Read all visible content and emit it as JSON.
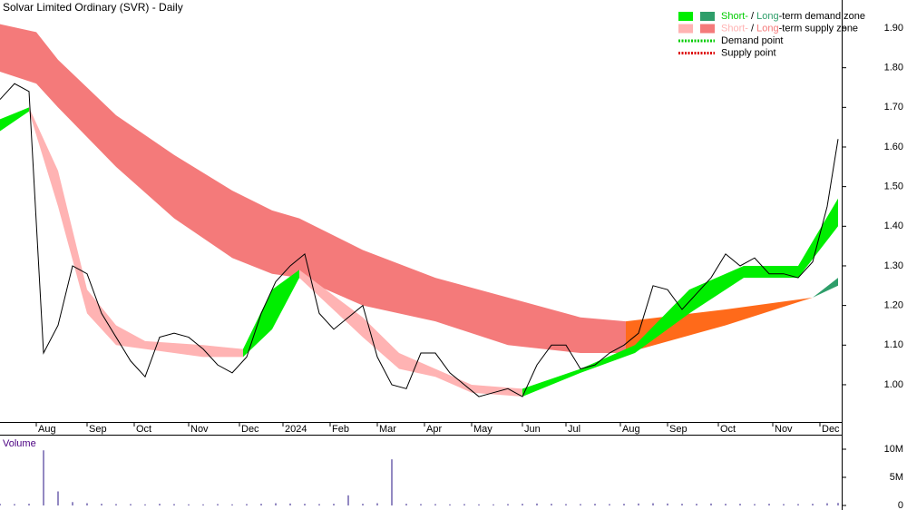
{
  "chart_data": [
    {
      "type": "line",
      "title": "Solvar Limited Ordinary (SVR) - Daily",
      "color": "#000000",
      "x": [
        0,
        4,
        8,
        12,
        16,
        20,
        24,
        28,
        32,
        36,
        40,
        44,
        48,
        52,
        56,
        60,
        64,
        68,
        72,
        76,
        80,
        84,
        88,
        92,
        96,
        100,
        104,
        108,
        112,
        116,
        120,
        124,
        128,
        132,
        136,
        140,
        144,
        148,
        152,
        156,
        160,
        164,
        168,
        172,
        176,
        180,
        184,
        188,
        192,
        196,
        200,
        204,
        208,
        212,
        216,
        220,
        224,
        228,
        231
      ],
      "values": [
        1.72,
        1.76,
        1.74,
        1.08,
        1.15,
        1.3,
        1.28,
        1.18,
        1.12,
        1.06,
        1.02,
        1.12,
        1.13,
        1.12,
        1.09,
        1.05,
        1.03,
        1.07,
        1.18,
        1.26,
        1.3,
        1.33,
        1.18,
        1.14,
        1.17,
        1.2,
        1.07,
        1.0,
        0.99,
        1.08,
        1.08,
        1.03,
        1.0,
        0.97,
        0.98,
        0.99,
        0.97,
        1.05,
        1.1,
        1.1,
        1.04,
        1.05,
        1.08,
        1.1,
        1.13,
        1.25,
        1.24,
        1.19,
        1.23,
        1.27,
        1.33,
        1.3,
        1.32,
        1.28,
        1.28,
        1.27,
        1.31,
        1.45,
        1.62
      ],
      "xlim": [
        0,
        232
      ],
      "xticks": [
        {
          "value": 10,
          "label": "Aug"
        },
        {
          "value": 24,
          "label": "Sep"
        },
        {
          "value": 37,
          "label": "Oct"
        },
        {
          "value": 52,
          "label": "Nov"
        },
        {
          "value": 66,
          "label": "Dec"
        },
        {
          "value": 78,
          "label": "2024"
        },
        {
          "value": 91,
          "label": "Feb"
        },
        {
          "value": 104,
          "label": "Mar"
        },
        {
          "value": 117,
          "label": "Apr"
        },
        {
          "value": 130,
          "label": "May"
        },
        {
          "value": 144,
          "label": "Jun"
        },
        {
          "value": 156,
          "label": "Jul"
        },
        {
          "value": 171,
          "label": "Aug"
        },
        {
          "value": 184,
          "label": "Sep"
        },
        {
          "value": 198,
          "label": "Oct"
        },
        {
          "value": 213,
          "label": "Nov"
        },
        {
          "value": 226,
          "label": "Dec"
        }
      ],
      "ylim": [
        0.906,
        1.971
      ],
      "yticks": [
        {
          "value": 1.0,
          "label": "1.00"
        },
        {
          "value": 1.1,
          "label": "1.10"
        },
        {
          "value": 1.2,
          "label": "1.20"
        },
        {
          "value": 1.3,
          "label": "1.30"
        },
        {
          "value": 1.4,
          "label": "1.40"
        },
        {
          "value": 1.5,
          "label": "1.50"
        },
        {
          "value": 1.6,
          "label": "1.60"
        },
        {
          "value": 1.7,
          "label": "1.70"
        },
        {
          "value": 1.8,
          "label": "1.80"
        },
        {
          "value": 1.9,
          "label": "1.90"
        }
      ],
      "bands": [
        {
          "color": "#f47a7a",
          "x": [
            0,
            10,
            16,
            32,
            48,
            64,
            75,
            82.5,
            100,
            120,
            140,
            160,
            172.5
          ],
          "upper": [
            1.91,
            1.89,
            1.82,
            1.68,
            1.58,
            1.49,
            1.44,
            1.42,
            1.34,
            1.27,
            1.22,
            1.17,
            1.16
          ],
          "lower": [
            1.79,
            1.76,
            1.7,
            1.55,
            1.42,
            1.32,
            1.28,
            1.27,
            1.2,
            1.16,
            1.1,
            1.08,
            1.08
          ]
        },
        {
          "color": "#ff6a1a",
          "x": [
            172.5,
            200,
            224
          ],
          "upper": [
            1.16,
            1.19,
            1.22
          ],
          "lower": [
            1.08,
            1.15,
            1.22
          ]
        },
        {
          "color": "#2e9e6a",
          "x": [
            224,
            231
          ],
          "upper": [
            1.22,
            1.27
          ],
          "lower": [
            1.22,
            1.25
          ]
        },
        {
          "color": "#00ee00",
          "x": [
            0,
            8
          ],
          "upper": [
            1.67,
            1.7
          ],
          "lower": [
            1.64,
            1.69
          ]
        },
        {
          "color": "#ffb3b3",
          "x": [
            8,
            16,
            24,
            32,
            40,
            56,
            67
          ],
          "upper": [
            1.7,
            1.54,
            1.24,
            1.15,
            1.11,
            1.1,
            1.09
          ],
          "lower": [
            1.69,
            1.45,
            1.18,
            1.1,
            1.09,
            1.07,
            1.07
          ]
        },
        {
          "color": "#00ee00",
          "x": [
            67,
            75,
            82.5
          ],
          "upper": [
            1.09,
            1.24,
            1.29
          ],
          "lower": [
            1.07,
            1.14,
            1.27
          ]
        },
        {
          "color": "#ffb3b3",
          "x": [
            82.5,
            100,
            110,
            120,
            130,
            144
          ],
          "upper": [
            1.29,
            1.17,
            1.08,
            1.04,
            1.0,
            0.99
          ],
          "lower": [
            1.27,
            1.12,
            1.04,
            1.02,
            0.98,
            0.97
          ]
        },
        {
          "color": "#00ee00",
          "x": [
            144,
            160,
            175,
            190,
            205,
            220,
            231
          ],
          "upper": [
            0.99,
            1.04,
            1.1,
            1.24,
            1.3,
            1.3,
            1.47
          ],
          "lower": [
            0.97,
            1.03,
            1.08,
            1.18,
            1.27,
            1.27,
            1.4
          ]
        }
      ],
      "legend_position": "top-right",
      "legend": [
        {
          "swatches": [
            "#00ee00",
            "#2e9e6a"
          ],
          "parts": [
            {
              "text": "Short-",
              "color": "#00cc00"
            },
            {
              "text": " / ",
              "color": "#000000"
            },
            {
              "text": "Long",
              "color": "#2e9e6a"
            },
            {
              "text": "-term demand zone",
              "color": "#000000"
            }
          ]
        },
        {
          "swatches": [
            "#ffb3b3",
            "#f47a7a"
          ],
          "parts": [
            {
              "text": "Short-",
              "color": "#ffb3b3"
            },
            {
              "text": " / ",
              "color": "#000000"
            },
            {
              "text": "Long",
              "color": "#f47a7a"
            },
            {
              "text": "-term supply zone",
              "color": "#000000"
            }
          ]
        },
        {
          "line_color": "#00cc00",
          "parts": [
            {
              "text": "Demand point",
              "color": "#000000"
            }
          ]
        },
        {
          "line_color": "#dd0000",
          "parts": [
            {
              "text": "Supply point",
              "color": "#000000"
            }
          ]
        }
      ]
    },
    {
      "type": "bar",
      "title": "Volume",
      "color": "#4b3b9a",
      "x": [
        0,
        4,
        8,
        12,
        16,
        20,
        24,
        28,
        32,
        36,
        40,
        44,
        48,
        52,
        56,
        60,
        64,
        68,
        72,
        76,
        80,
        84,
        88,
        92,
        96,
        100,
        104,
        108,
        112,
        116,
        120,
        124,
        128,
        132,
        136,
        140,
        144,
        148,
        152,
        156,
        160,
        164,
        168,
        172,
        176,
        180,
        184,
        188,
        192,
        196,
        200,
        204,
        208,
        212,
        216,
        220,
        224,
        228,
        231
      ],
      "values": [
        300000,
        250000,
        300000,
        9800000,
        2500000,
        600000,
        400000,
        300000,
        250000,
        250000,
        200000,
        300000,
        250000,
        200000,
        200000,
        250000,
        200000,
        250000,
        300000,
        400000,
        350000,
        300000,
        250000,
        300000,
        1800000,
        300000,
        400000,
        8200000,
        300000,
        250000,
        250000,
        200000,
        250000,
        200000,
        200000,
        250000,
        300000,
        350000,
        300000,
        250000,
        250000,
        300000,
        250000,
        300000,
        350000,
        400000,
        350000,
        300000,
        300000,
        350000,
        300000,
        300000,
        250000,
        300000,
        250000,
        250000,
        300000,
        400000,
        450000
      ],
      "xlim": [
        0,
        232
      ],
      "ylim": [
        0,
        12260000
      ],
      "yticks": [
        0,
        {
          "value": 5000000,
          "label": "5M"
        },
        {
          "value": 10000000,
          "label": "10M"
        }
      ]
    }
  ]
}
